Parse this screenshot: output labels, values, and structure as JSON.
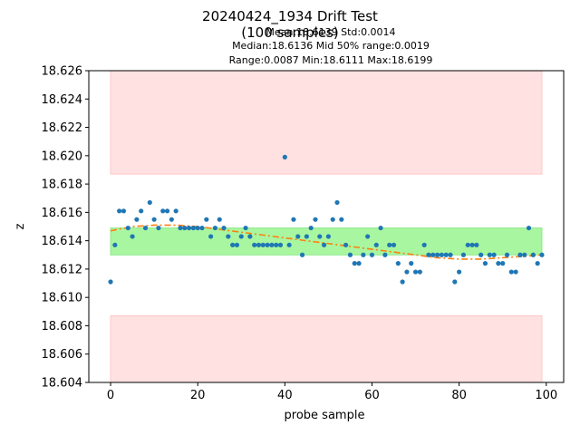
{
  "chart_data": {
    "type": "scatter",
    "title": "20240424_1934 Drift Test",
    "subtitle": "(100 samples)",
    "stats": {
      "line1": "Mean:18.6139  Std:0.0014",
      "line2": "Median:18.6136  Mid 50% range:0.0019",
      "line3": "Range:0.0087  Min:18.6111  Max:18.6199"
    },
    "xlabel": "probe sample",
    "ylabel": "z",
    "xlim": [
      -5,
      104
    ],
    "ylim": [
      18.604,
      18.626
    ],
    "x_ticks": [
      "0",
      "20",
      "40",
      "60",
      "80",
      "100"
    ],
    "y_ticks": [
      "18.604",
      "18.606",
      "18.608",
      "18.610",
      "18.612",
      "18.614",
      "18.616",
      "18.618",
      "18.620",
      "18.622",
      "18.624",
      "18.626"
    ],
    "grid": false,
    "bands": [
      {
        "name": "outer-upper",
        "x": [
          0,
          99
        ],
        "y": [
          18.6187,
          18.626
        ],
        "color": "#ffe1e1"
      },
      {
        "name": "outer-lower",
        "x": [
          0,
          99
        ],
        "y": [
          18.604,
          18.6087
        ],
        "color": "#ffe1e1"
      },
      {
        "name": "mid-50",
        "x": [
          0,
          99
        ],
        "y": [
          18.613,
          18.6149
        ],
        "color": "#a9f6a0"
      }
    ],
    "series": [
      {
        "style": "points",
        "color": "#1f77b4",
        "x": [
          0,
          1,
          2,
          3,
          4,
          5,
          6,
          7,
          8,
          9,
          10,
          11,
          12,
          13,
          14,
          15,
          16,
          17,
          18,
          19,
          20,
          21,
          22,
          23,
          24,
          25,
          26,
          27,
          28,
          29,
          30,
          31,
          32,
          33,
          34,
          35,
          36,
          37,
          38,
          39,
          40,
          41,
          42,
          43,
          44,
          45,
          46,
          47,
          48,
          49,
          50,
          51,
          52,
          53,
          54,
          55,
          56,
          57,
          58,
          59,
          60,
          61,
          62,
          63,
          64,
          65,
          66,
          67,
          68,
          69,
          70,
          71,
          72,
          73,
          74,
          75,
          76,
          77,
          78,
          79,
          80,
          81,
          82,
          83,
          84,
          85,
          86,
          87,
          88,
          89,
          90,
          91,
          92,
          93,
          94,
          95,
          96,
          97,
          98,
          99
        ],
        "y": [
          18.6111,
          18.6137,
          18.6161,
          18.6161,
          18.6149,
          18.6143,
          18.6155,
          18.6161,
          18.6149,
          18.6167,
          18.6155,
          18.6149,
          18.6161,
          18.6161,
          18.6155,
          18.6161,
          18.6149,
          18.6149,
          18.6149,
          18.6149,
          18.6149,
          18.6149,
          18.6155,
          18.6143,
          18.6149,
          18.6155,
          18.6149,
          18.6143,
          18.6137,
          18.6137,
          18.6143,
          18.6149,
          18.6143,
          18.6137,
          18.6137,
          18.6137,
          18.6137,
          18.6137,
          18.6137,
          18.6137,
          18.6199,
          18.6137,
          18.6155,
          18.6143,
          18.613,
          18.6143,
          18.6149,
          18.6155,
          18.6143,
          18.6137,
          18.6143,
          18.6155,
          18.6167,
          18.6155,
          18.6137,
          18.613,
          18.6124,
          18.6124,
          18.613,
          18.6143,
          18.613,
          18.6137,
          18.6149,
          18.613,
          18.6137,
          18.6137,
          18.6124,
          18.6111,
          18.6118,
          18.6124,
          18.6118,
          18.6118,
          18.6137,
          18.613,
          18.613,
          18.613,
          18.613,
          18.613,
          18.613,
          18.6111,
          18.6118,
          18.613,
          18.6137,
          18.6137,
          18.6137,
          18.613,
          18.6124,
          18.613,
          18.613,
          18.6124,
          18.6124,
          18.613,
          18.6118,
          18.6118,
          18.613,
          18.613,
          18.6149,
          18.613,
          18.6124,
          18.613
        ]
      },
      {
        "style": "dash-dot",
        "color": "#ff7f0e",
        "x": [
          0,
          5,
          10,
          15,
          20,
          25,
          30,
          35,
          40,
          45,
          50,
          55,
          60,
          65,
          70,
          75,
          80,
          85,
          90,
          95,
          99
        ],
        "y": [
          18.6147,
          18.615,
          18.6151,
          18.6151,
          18.615,
          18.6148,
          18.6146,
          18.6144,
          18.6142,
          18.614,
          18.6138,
          18.6136,
          18.6134,
          18.6132,
          18.613,
          18.6128,
          18.6127,
          18.6127,
          18.6128,
          18.6129,
          18.613
        ]
      }
    ]
  }
}
